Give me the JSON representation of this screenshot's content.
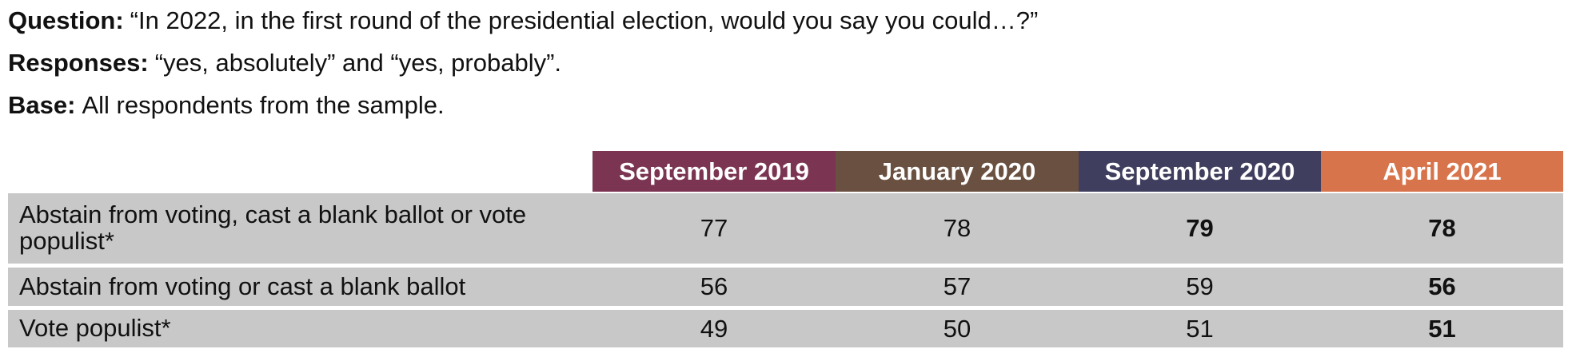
{
  "header": {
    "lines": [
      {
        "label": "Question:",
        "text": "“In 2022, in the first round of the presidential election, would you say you could…?”"
      },
      {
        "label": "Responses:",
        "text": "“yes, absolutely” and “yes, probably”."
      },
      {
        "label": "Base:",
        "text": "All respondents from the sample."
      }
    ]
  },
  "table": {
    "columns": [
      {
        "label": "September 2019",
        "color": "#7b3552"
      },
      {
        "label": "January 2020",
        "color": "#6a5040"
      },
      {
        "label": "September 2020",
        "color": "#3f3e5e"
      },
      {
        "label": "April 2021",
        "color": "#d8744b"
      }
    ],
    "rows": [
      {
        "label": "Abstain from voting, cast a blank ballot or vote populist*",
        "values": [
          77,
          78,
          79,
          78
        ],
        "bold": [
          false,
          false,
          true,
          true
        ]
      },
      {
        "label": "Abstain from voting or cast a blank ballot",
        "values": [
          56,
          57,
          59,
          56
        ],
        "bold": [
          false,
          false,
          false,
          true
        ]
      },
      {
        "label": "Vote populist*",
        "values": [
          49,
          50,
          51,
          51
        ],
        "bold": [
          false,
          false,
          false,
          true
        ]
      }
    ]
  }
}
